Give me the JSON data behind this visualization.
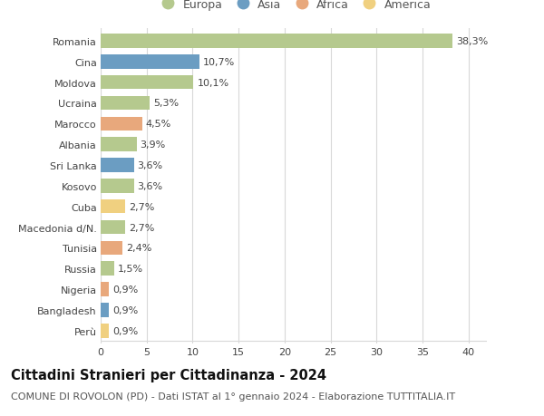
{
  "countries": [
    "Romania",
    "Cina",
    "Moldova",
    "Ucraina",
    "Marocco",
    "Albania",
    "Sri Lanka",
    "Kosovo",
    "Cuba",
    "Macedonia d/N.",
    "Tunisia",
    "Russia",
    "Nigeria",
    "Bangladesh",
    "Perù"
  ],
  "values": [
    38.3,
    10.7,
    10.1,
    5.3,
    4.5,
    3.9,
    3.6,
    3.6,
    2.7,
    2.7,
    2.4,
    1.5,
    0.9,
    0.9,
    0.9
  ],
  "labels": [
    "38,3%",
    "10,7%",
    "10,1%",
    "5,3%",
    "4,5%",
    "3,9%",
    "3,6%",
    "3,6%",
    "2,7%",
    "2,7%",
    "2,4%",
    "1,5%",
    "0,9%",
    "0,9%",
    "0,9%"
  ],
  "continents": [
    "Europa",
    "Asia",
    "Europa",
    "Europa",
    "Africa",
    "Europa",
    "Asia",
    "Europa",
    "America",
    "Europa",
    "Africa",
    "Europa",
    "Africa",
    "Asia",
    "America"
  ],
  "continent_colors": {
    "Europa": "#b5c98e",
    "Asia": "#6b9dc2",
    "Africa": "#e8a87c",
    "America": "#f0d080"
  },
  "legend_order": [
    "Europa",
    "Asia",
    "Africa",
    "America"
  ],
  "title": "Cittadini Stranieri per Cittadinanza - 2024",
  "subtitle": "COMUNE DI ROVOLON (PD) - Dati ISTAT al 1° gennaio 2024 - Elaborazione TUTTITALIA.IT",
  "xlim": [
    0,
    42
  ],
  "xticks": [
    0,
    5,
    10,
    15,
    20,
    25,
    30,
    35,
    40
  ],
  "background_color": "#ffffff",
  "grid_color": "#d8d8d8",
  "bar_height": 0.68,
  "label_fontsize": 8.0,
  "title_fontsize": 10.5,
  "subtitle_fontsize": 8.0,
  "tick_fontsize": 8.0,
  "legend_fontsize": 9.0
}
